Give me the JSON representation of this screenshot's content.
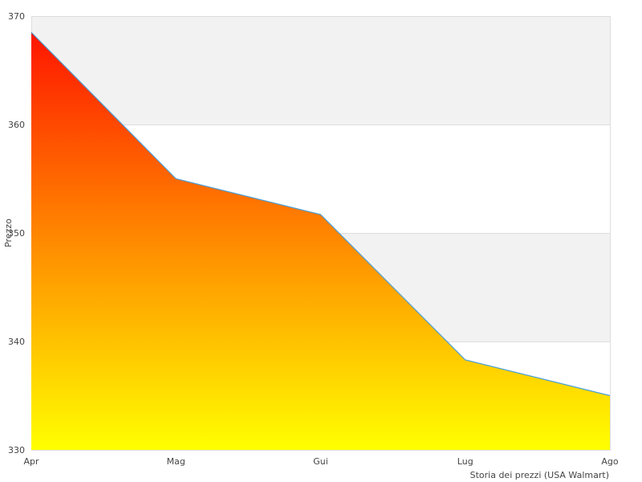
{
  "chart_data": {
    "type": "area",
    "categories": [
      "Apr",
      "Mag",
      "Gui",
      "Lug",
      "Ago"
    ],
    "series": [
      {
        "values": [
          368.5,
          355.0,
          351.7,
          338.3,
          335.0
        ]
      }
    ],
    "ylabel": "Prezzo",
    "xlabel": "Storia dei prezzi (USA Walmart)",
    "ylim": [
      330,
      370
    ],
    "yticks": [
      330,
      340,
      350,
      360,
      370
    ],
    "grid": true,
    "band_colors": [
      "#ffffff",
      "#f2f2f2"
    ],
    "fill_gradient": {
      "top": "#ff1500",
      "bottom": "#ffff00"
    },
    "line_color": "#4a9fd8"
  }
}
